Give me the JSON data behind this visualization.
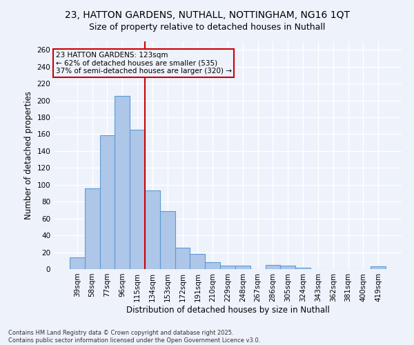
{
  "title_line1": "23, HATTON GARDENS, NUTHALL, NOTTINGHAM, NG16 1QT",
  "title_line2": "Size of property relative to detached houses in Nuthall",
  "xlabel": "Distribution of detached houses by size in Nuthall",
  "ylabel": "Number of detached properties",
  "categories": [
    "39sqm",
    "58sqm",
    "77sqm",
    "96sqm",
    "115sqm",
    "134sqm",
    "153sqm",
    "172sqm",
    "191sqm",
    "210sqm",
    "229sqm",
    "248sqm",
    "267sqm",
    "286sqm",
    "305sqm",
    "324sqm",
    "343sqm",
    "362sqm",
    "381sqm",
    "400sqm",
    "419sqm"
  ],
  "values": [
    14,
    96,
    159,
    205,
    165,
    93,
    69,
    25,
    18,
    8,
    4,
    4,
    0,
    5,
    4,
    2,
    0,
    0,
    0,
    0,
    3
  ],
  "bar_color": "#aec6e8",
  "bar_edge_color": "#5b9bd5",
  "background_color": "#eef2fb",
  "grid_color": "#ffffff",
  "vline_x": 4.5,
  "vline_color": "#cc0000",
  "annotation_text": "23 HATTON GARDENS: 123sqm\n← 62% of detached houses are smaller (535)\n37% of semi-detached houses are larger (320) →",
  "annotation_box_color": "#cc0000",
  "ylim": [
    0,
    270
  ],
  "yticks": [
    0,
    20,
    40,
    60,
    80,
    100,
    120,
    140,
    160,
    180,
    200,
    220,
    240,
    260
  ],
  "footnote": "Contains HM Land Registry data © Crown copyright and database right 2025.\nContains public sector information licensed under the Open Government Licence v3.0.",
  "title_fontsize": 10,
  "subtitle_fontsize": 9,
  "axis_label_fontsize": 8.5,
  "tick_fontsize": 7.5,
  "annotation_fontsize": 7.5,
  "footnote_fontsize": 6
}
